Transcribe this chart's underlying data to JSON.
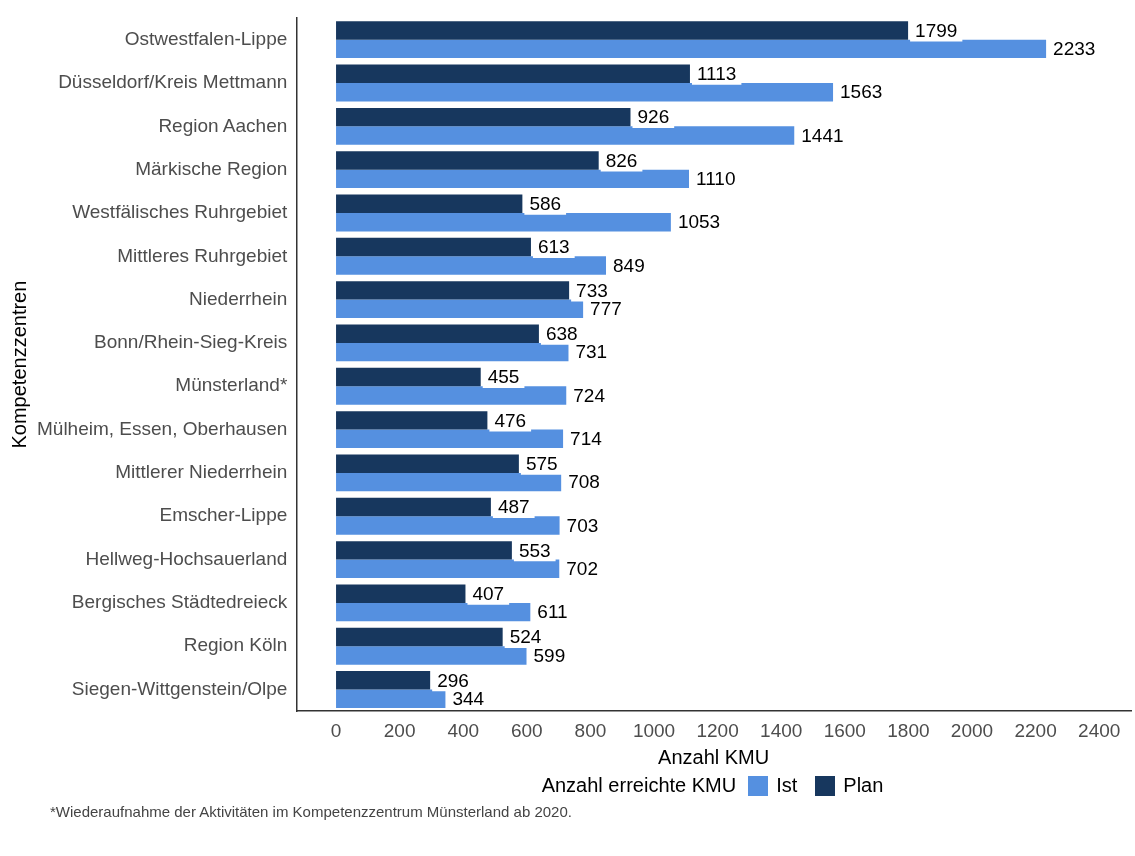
{
  "chart_data": {
    "type": "bar",
    "orientation": "horizontal",
    "xlabel": "Anzahl KMU",
    "ylabel": "Kompetenzzentren",
    "legend_title": "Anzahl erreichte KMU",
    "legend": "bottom",
    "grid": false,
    "data_labels": true,
    "categories": [
      "Ostwestfalen-Lippe",
      "Düsseldorf/Kreis Mettmann",
      "Region Aachen",
      "Märkische Region",
      "Westfälisches Ruhrgebiet",
      "Mittleres Ruhrgebiet",
      "Niederrhein",
      "Bonn/Rhein-Sieg-Kreis",
      "Münsterland*",
      "Mülheim, Essen, Oberhausen",
      "Mittlerer Niederrhein",
      "Emscher-Lippe",
      "Hellweg-Hochsauerland",
      "Bergisches Städtedreieck",
      "Region Köln",
      "Siegen-Wittgenstein/Olpe"
    ],
    "series": [
      {
        "name": "Plan",
        "color": "#17375e",
        "values": [
          1799,
          1113,
          926,
          826,
          586,
          613,
          733,
          638,
          455,
          476,
          575,
          487,
          553,
          407,
          524,
          296
        ]
      },
      {
        "name": "Ist",
        "color": "#5590e0",
        "values": [
          2233,
          1563,
          1441,
          1110,
          1053,
          849,
          777,
          731,
          724,
          714,
          708,
          703,
          702,
          611,
          599,
          344
        ]
      }
    ],
    "xlim": [
      -125,
      2500
    ],
    "xticks": [
      0,
      200,
      400,
      600,
      800,
      1000,
      1200,
      1400,
      1600,
      1800,
      2000,
      2200,
      2400
    ],
    "annotations": [
      "*Wiederaufnahme der Aktivitäten im Kompetenzzentrum Münsterland ab 2020."
    ]
  }
}
